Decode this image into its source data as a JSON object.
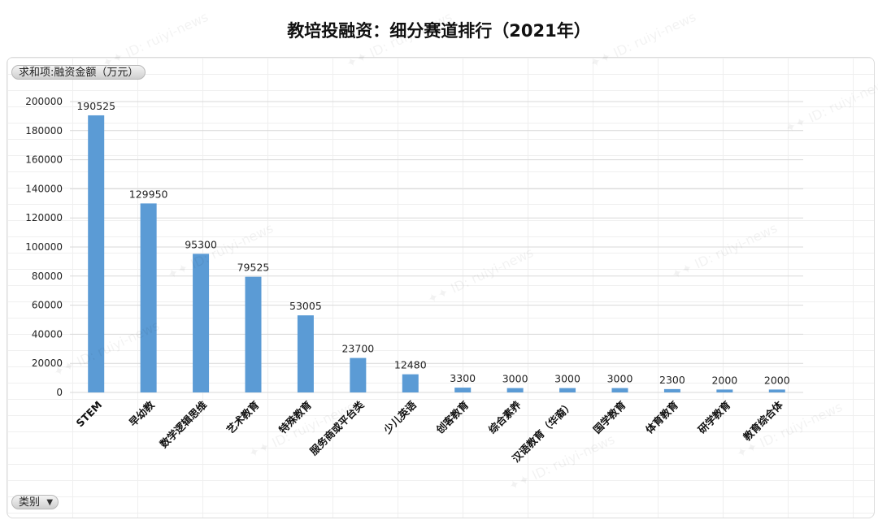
{
  "title": "教培投融资：细分赛道排行（2021年）",
  "field_label": "求和项:融资金额（万元）",
  "category_label": "类别",
  "colors": {
    "bar": "#5b9bd5",
    "grid": "#d9d9d9"
  },
  "chart_data": {
    "type": "bar",
    "title": "教培投融资：细分赛道排行（2021年）",
    "ylabel": "求和项:融资金额（万元）",
    "xlabel": "类别",
    "ylim": [
      0,
      200000
    ],
    "yticks": [
      0,
      20000,
      40000,
      60000,
      80000,
      100000,
      120000,
      140000,
      160000,
      180000,
      200000
    ],
    "grid": true,
    "categories": [
      "STEM",
      "早幼教",
      "数学逻辑思维",
      "艺术教育",
      "特殊教育",
      "服务商或平台类",
      "少儿英语",
      "创客教育",
      "综合素养",
      "汉语教育（华裔）",
      "国学教育",
      "体育教育",
      "研学教育",
      "教育综合体"
    ],
    "values": [
      190525,
      129950,
      95300,
      79525,
      53005,
      23700,
      12480,
      3300,
      3000,
      3000,
      3000,
      2300,
      2000,
      2000
    ]
  }
}
